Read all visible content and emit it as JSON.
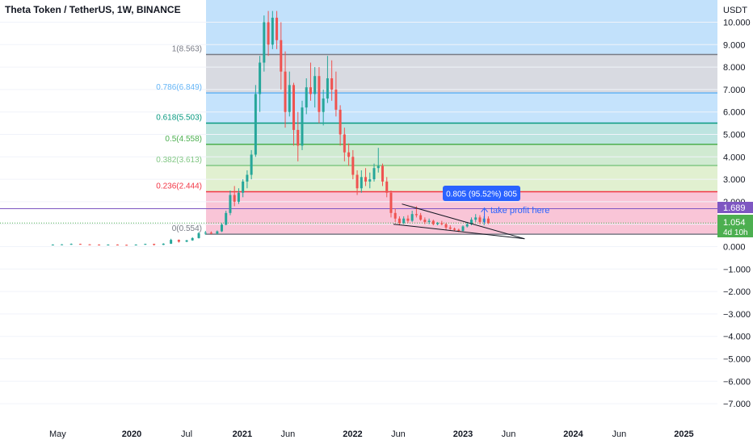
{
  "header": {
    "title": "Theta Token / TetherUS, 1W, BINANCE"
  },
  "axis": {
    "currency": "USDT"
  },
  "price_tags": {
    "level": "1.689",
    "last_price": "1.054",
    "countdown": "4d 10h"
  },
  "annotations": {
    "measure": "0.805 (95.52%) 805",
    "note": "take profit here"
  },
  "colors": {
    "up": "#26a69a",
    "down": "#ef5350",
    "level_line": "#7e57c2",
    "last_price": "#4caf50",
    "measure_box": "#2962ff"
  },
  "chart_data": {
    "type": "candlestick",
    "title": "Theta Token / TetherUS, 1W, BINANCE",
    "y_unit": "USDT",
    "ylim": [
      -7.5,
      10.5
    ],
    "xlim": [
      "2019-04-01",
      "2025-06-30"
    ],
    "yticks": [
      "10.000",
      "9.000",
      "8.000",
      "7.000",
      "6.000",
      "5.000",
      "4.000",
      "3.000",
      "2.000",
      "1.000",
      "0.000",
      "−1.000",
      "−2.000",
      "−3.000",
      "−4.000",
      "−5.000",
      "−6.000",
      "−7.000"
    ],
    "xticks": [
      {
        "label": "May",
        "date": "2019-05-01"
      },
      {
        "label": "2020",
        "date": "2020-01-01"
      },
      {
        "label": "Jul",
        "date": "2020-07-01"
      },
      {
        "label": "2021",
        "date": "2021-01-01"
      },
      {
        "label": "Jun",
        "date": "2021-06-01"
      },
      {
        "label": "2022",
        "date": "2022-01-01"
      },
      {
        "label": "Jun",
        "date": "2022-06-01"
      },
      {
        "label": "2023",
        "date": "2023-01-01"
      },
      {
        "label": "Jun",
        "date": "2023-06-01"
      },
      {
        "label": "2024",
        "date": "2024-01-01"
      },
      {
        "label": "Jun",
        "date": "2024-06-01"
      },
      {
        "label": "2025",
        "date": "2025-01-01"
      }
    ],
    "fib_levels": [
      {
        "label": "1(8.563)",
        "ratio": 1,
        "price": 8.563,
        "line": "#787b86",
        "fill": "#d1d4dc"
      },
      {
        "label": "0.786(6.849)",
        "ratio": 0.786,
        "price": 6.849,
        "line": "#64b5f6",
        "fill": "#bbdefb"
      },
      {
        "label": "0.618(5.503)",
        "ratio": 0.618,
        "price": 5.503,
        "line": "#089981",
        "fill": "#b2dfdb"
      },
      {
        "label": "0.5(4.558)",
        "ratio": 0.5,
        "price": 4.558,
        "line": "#4caf50",
        "fill": "#c8e6c9"
      },
      {
        "label": "0.382(3.613)",
        "ratio": 0.382,
        "price": 3.613,
        "line": "#81c784",
        "fill": "#dcedc8"
      },
      {
        "label": "0.236(2.444)",
        "ratio": 0.236,
        "price": 2.444,
        "line": "#f23645",
        "fill": "#f8bbd0"
      },
      {
        "label": "0(0.554)",
        "ratio": 0,
        "price": 0.554,
        "line": "#787b86",
        "fill": "#ffcdd2"
      }
    ],
    "fib_top_fill": "#bbdefb",
    "horizontal_levels": [
      {
        "price": 1.689,
        "color": "#7e57c2"
      },
      {
        "price": 1.054,
        "color": "#4caf50",
        "style": "dotted"
      }
    ],
    "wedge": [
      {
        "from": {
          "date": "2022-06-13",
          "price": 1.9
        },
        "to": {
          "date": "2023-07-24",
          "price": 0.35
        }
      },
      {
        "from": {
          "date": "2022-05-16",
          "price": 1.0
        },
        "to": {
          "date": "2023-07-24",
          "price": 0.35
        }
      }
    ],
    "measure_arrow": {
      "date": "2023-03-13",
      "from": 1.05,
      "to": 1.72
    },
    "candles": [
      {
        "d": "2019-04-15",
        "o": 0.08,
        "h": 0.1,
        "l": 0.07,
        "c": 0.09
      },
      {
        "d": "2019-05-15",
        "o": 0.09,
        "h": 0.11,
        "l": 0.08,
        "c": 0.1
      },
      {
        "d": "2019-06-15",
        "o": 0.1,
        "h": 0.14,
        "l": 0.08,
        "c": 0.12
      },
      {
        "d": "2019-07-15",
        "o": 0.12,
        "h": 0.13,
        "l": 0.09,
        "c": 0.1
      },
      {
        "d": "2019-08-15",
        "o": 0.1,
        "h": 0.11,
        "l": 0.08,
        "c": 0.09
      },
      {
        "d": "2019-09-15",
        "o": 0.09,
        "h": 0.1,
        "l": 0.07,
        "c": 0.08
      },
      {
        "d": "2019-10-15",
        "o": 0.08,
        "h": 0.1,
        "l": 0.07,
        "c": 0.09
      },
      {
        "d": "2019-11-15",
        "o": 0.09,
        "h": 0.1,
        "l": 0.07,
        "c": 0.08
      },
      {
        "d": "2019-12-15",
        "o": 0.08,
        "h": 0.09,
        "l": 0.06,
        "c": 0.07
      },
      {
        "d": "2020-01-15",
        "o": 0.07,
        "h": 0.1,
        "l": 0.06,
        "c": 0.09
      },
      {
        "d": "2020-02-15",
        "o": 0.09,
        "h": 0.13,
        "l": 0.08,
        "c": 0.12
      },
      {
        "d": "2020-03-15",
        "o": 0.12,
        "h": 0.13,
        "l": 0.05,
        "c": 0.08
      },
      {
        "d": "2020-04-15",
        "o": 0.08,
        "h": 0.15,
        "l": 0.07,
        "c": 0.13
      },
      {
        "d": "2020-05-10",
        "o": 0.13,
        "h": 0.35,
        "l": 0.12,
        "c": 0.3
      },
      {
        "d": "2020-06-05",
        "o": 0.3,
        "h": 0.32,
        "l": 0.18,
        "c": 0.22
      },
      {
        "d": "2020-07-01",
        "o": 0.22,
        "h": 0.3,
        "l": 0.2,
        "c": 0.28
      },
      {
        "d": "2020-07-20",
        "o": 0.28,
        "h": 0.42,
        "l": 0.26,
        "c": 0.38
      },
      {
        "d": "2020-08-10",
        "o": 0.38,
        "h": 0.65,
        "l": 0.36,
        "c": 0.6
      },
      {
        "d": "2020-09-01",
        "o": 0.6,
        "h": 0.7,
        "l": 0.52,
        "c": 0.62
      },
      {
        "d": "2020-09-20",
        "o": 0.62,
        "h": 0.68,
        "l": 0.55,
        "c": 0.58
      },
      {
        "d": "2020-10-10",
        "o": 0.58,
        "h": 0.72,
        "l": 0.55,
        "c": 0.68
      },
      {
        "d": "2020-10-25",
        "o": 0.68,
        "h": 1.05,
        "l": 0.65,
        "c": 0.98
      },
      {
        "d": "2020-11-08",
        "o": 0.98,
        "h": 1.6,
        "l": 0.95,
        "c": 1.5
      },
      {
        "d": "2020-11-22",
        "o": 1.5,
        "h": 2.5,
        "l": 1.4,
        "c": 2.3
      },
      {
        "d": "2020-12-06",
        "o": 2.3,
        "h": 2.7,
        "l": 1.8,
        "c": 2.0
      },
      {
        "d": "2020-12-20",
        "o": 2.0,
        "h": 2.6,
        "l": 1.9,
        "c": 2.4
      },
      {
        "d": "2021-01-03",
        "o": 2.4,
        "h": 3.0,
        "l": 2.2,
        "c": 2.9
      },
      {
        "d": "2021-01-17",
        "o": 2.9,
        "h": 3.4,
        "l": 2.6,
        "c": 3.2
      },
      {
        "d": "2021-01-31",
        "o": 3.2,
        "h": 4.3,
        "l": 3.0,
        "c": 4.1
      },
      {
        "d": "2021-02-14",
        "o": 4.1,
        "h": 7.2,
        "l": 4.0,
        "c": 6.8
      },
      {
        "d": "2021-02-28",
        "o": 6.8,
        "h": 8.5,
        "l": 6.0,
        "c": 8.2
      },
      {
        "d": "2021-03-14",
        "o": 8.2,
        "h": 10.3,
        "l": 7.8,
        "c": 10.0
      },
      {
        "d": "2021-03-28",
        "o": 10.0,
        "h": 10.5,
        "l": 8.5,
        "c": 9.0
      },
      {
        "d": "2021-04-11",
        "o": 9.0,
        "h": 10.5,
        "l": 8.8,
        "c": 10.2
      },
      {
        "d": "2021-04-25",
        "o": 10.2,
        "h": 10.5,
        "l": 8.8,
        "c": 9.2
      },
      {
        "d": "2021-05-09",
        "o": 9.2,
        "h": 10.0,
        "l": 7.0,
        "c": 7.8
      },
      {
        "d": "2021-05-23",
        "o": 7.8,
        "h": 8.7,
        "l": 5.3,
        "c": 6.0
      },
      {
        "d": "2021-06-06",
        "o": 6.0,
        "h": 7.8,
        "l": 5.8,
        "c": 7.2
      },
      {
        "d": "2021-06-20",
        "o": 7.2,
        "h": 7.3,
        "l": 4.5,
        "c": 5.2
      },
      {
        "d": "2021-07-04",
        "o": 5.2,
        "h": 6.0,
        "l": 3.8,
        "c": 4.5
      },
      {
        "d": "2021-07-18",
        "o": 4.5,
        "h": 6.5,
        "l": 4.3,
        "c": 6.2
      },
      {
        "d": "2021-08-01",
        "o": 6.2,
        "h": 7.5,
        "l": 5.9,
        "c": 7.1
      },
      {
        "d": "2021-08-15",
        "o": 7.1,
        "h": 8.2,
        "l": 6.5,
        "c": 6.8
      },
      {
        "d": "2021-08-29",
        "o": 6.8,
        "h": 8.0,
        "l": 6.2,
        "c": 7.6
      },
      {
        "d": "2021-09-12",
        "o": 7.6,
        "h": 8.0,
        "l": 5.5,
        "c": 6.0
      },
      {
        "d": "2021-09-26",
        "o": 6.0,
        "h": 7.0,
        "l": 5.4,
        "c": 6.6
      },
      {
        "d": "2021-10-10",
        "o": 6.6,
        "h": 8.5,
        "l": 6.4,
        "c": 7.5
      },
      {
        "d": "2021-10-24",
        "o": 7.5,
        "h": 8.3,
        "l": 6.5,
        "c": 7.0
      },
      {
        "d": "2021-11-07",
        "o": 7.0,
        "h": 7.8,
        "l": 5.8,
        "c": 6.1
      },
      {
        "d": "2021-11-21",
        "o": 6.1,
        "h": 6.3,
        "l": 4.5,
        "c": 5.0
      },
      {
        "d": "2021-12-05",
        "o": 5.0,
        "h": 5.3,
        "l": 3.8,
        "c": 4.2
      },
      {
        "d": "2021-12-19",
        "o": 4.2,
        "h": 4.6,
        "l": 3.6,
        "c": 4.0
      },
      {
        "d": "2022-01-02",
        "o": 4.0,
        "h": 4.3,
        "l": 3.0,
        "c": 3.2
      },
      {
        "d": "2022-01-16",
        "o": 3.2,
        "h": 3.4,
        "l": 2.3,
        "c": 2.6
      },
      {
        "d": "2022-01-30",
        "o": 2.6,
        "h": 3.4,
        "l": 2.4,
        "c": 3.1
      },
      {
        "d": "2022-02-13",
        "o": 3.1,
        "h": 3.5,
        "l": 2.7,
        "c": 2.9
      },
      {
        "d": "2022-02-27",
        "o": 2.9,
        "h": 3.3,
        "l": 2.6,
        "c": 3.0
      },
      {
        "d": "2022-03-13",
        "o": 3.0,
        "h": 3.7,
        "l": 2.9,
        "c": 3.5
      },
      {
        "d": "2022-03-27",
        "o": 3.5,
        "h": 4.4,
        "l": 3.3,
        "c": 3.6
      },
      {
        "d": "2022-04-10",
        "o": 3.6,
        "h": 3.7,
        "l": 2.7,
        "c": 2.9
      },
      {
        "d": "2022-04-24",
        "o": 2.9,
        "h": 3.1,
        "l": 2.2,
        "c": 2.4
      },
      {
        "d": "2022-05-08",
        "o": 2.4,
        "h": 2.5,
        "l": 1.3,
        "c": 1.5
      },
      {
        "d": "2022-05-22",
        "o": 1.5,
        "h": 1.7,
        "l": 1.1,
        "c": 1.25
      },
      {
        "d": "2022-06-05",
        "o": 1.25,
        "h": 1.35,
        "l": 0.95,
        "c": 1.05
      },
      {
        "d": "2022-06-19",
        "o": 1.05,
        "h": 1.35,
        "l": 1.0,
        "c": 1.25
      },
      {
        "d": "2022-07-03",
        "o": 1.25,
        "h": 1.4,
        "l": 1.05,
        "c": 1.15
      },
      {
        "d": "2022-07-17",
        "o": 1.15,
        "h": 1.6,
        "l": 1.1,
        "c": 1.45
      },
      {
        "d": "2022-07-31",
        "o": 1.45,
        "h": 1.8,
        "l": 1.3,
        "c": 1.4
      },
      {
        "d": "2022-08-14",
        "o": 1.4,
        "h": 1.5,
        "l": 1.15,
        "c": 1.2
      },
      {
        "d": "2022-08-28",
        "o": 1.2,
        "h": 1.3,
        "l": 1.0,
        "c": 1.1
      },
      {
        "d": "2022-09-11",
        "o": 1.1,
        "h": 1.25,
        "l": 1.0,
        "c": 1.15
      },
      {
        "d": "2022-09-25",
        "o": 1.15,
        "h": 1.2,
        "l": 0.95,
        "c": 1.0
      },
      {
        "d": "2022-10-09",
        "o": 1.0,
        "h": 1.1,
        "l": 0.95,
        "c": 1.05
      },
      {
        "d": "2022-10-23",
        "o": 1.05,
        "h": 1.15,
        "l": 0.95,
        "c": 1.0
      },
      {
        "d": "2022-11-06",
        "o": 1.0,
        "h": 1.05,
        "l": 0.75,
        "c": 0.85
      },
      {
        "d": "2022-11-20",
        "o": 0.85,
        "h": 0.95,
        "l": 0.75,
        "c": 0.8
      },
      {
        "d": "2022-12-04",
        "o": 0.8,
        "h": 0.85,
        "l": 0.7,
        "c": 0.75
      },
      {
        "d": "2022-12-18",
        "o": 0.75,
        "h": 0.8,
        "l": 0.65,
        "c": 0.7
      },
      {
        "d": "2023-01-01",
        "o": 0.7,
        "h": 0.95,
        "l": 0.68,
        "c": 0.9
      },
      {
        "d": "2023-01-15",
        "o": 0.9,
        "h": 1.1,
        "l": 0.85,
        "c": 1.0
      },
      {
        "d": "2023-01-29",
        "o": 1.0,
        "h": 1.3,
        "l": 0.95,
        "c": 1.2
      },
      {
        "d": "2023-02-12",
        "o": 1.2,
        "h": 1.45,
        "l": 1.1,
        "c": 1.3
      },
      {
        "d": "2023-02-26",
        "o": 1.3,
        "h": 1.4,
        "l": 1.0,
        "c": 1.1
      },
      {
        "d": "2023-03-12",
        "o": 1.1,
        "h": 1.35,
        "l": 0.95,
        "c": 1.25
      },
      {
        "d": "2023-03-26",
        "o": 1.25,
        "h": 1.35,
        "l": 1.0,
        "c": 1.054
      }
    ]
  }
}
